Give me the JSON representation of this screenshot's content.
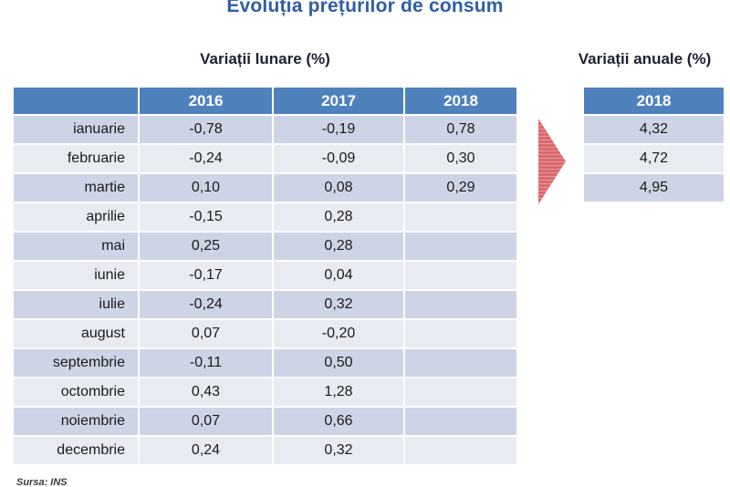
{
  "title": "Evoluția prețurilor de consum",
  "monthly_table": {
    "heading": "Variații lunare (%)",
    "columns": [
      "",
      "2016",
      "2017",
      "2018"
    ],
    "rows": [
      {
        "month": "ianuarie",
        "y2016": "-0,78",
        "y2017": "-0,19",
        "y2018": "0,78"
      },
      {
        "month": "februarie",
        "y2016": "-0,24",
        "y2017": "-0,09",
        "y2018": "0,30"
      },
      {
        "month": "martie",
        "y2016": "0,10",
        "y2017": "0,08",
        "y2018": "0,29"
      },
      {
        "month": "aprilie",
        "y2016": "-0,15",
        "y2017": "0,28",
        "y2018": ""
      },
      {
        "month": "mai",
        "y2016": "0,25",
        "y2017": "0,28",
        "y2018": ""
      },
      {
        "month": "iunie",
        "y2016": "-0,17",
        "y2017": "0,04",
        "y2018": ""
      },
      {
        "month": "iulie",
        "y2016": "-0,24",
        "y2017": "0,32",
        "y2018": ""
      },
      {
        "month": "august",
        "y2016": "0,07",
        "y2017": "-0,20",
        "y2018": ""
      },
      {
        "month": "septembrie",
        "y2016": "-0,11",
        "y2017": "0,50",
        "y2018": ""
      },
      {
        "month": "octombrie",
        "y2016": "0,43",
        "y2017": "1,28",
        "y2018": ""
      },
      {
        "month": "noiembrie",
        "y2016": "0,07",
        "y2017": "0,66",
        "y2018": ""
      },
      {
        "month": "decembrie",
        "y2016": "0,24",
        "y2017": "0,32",
        "y2018": ""
      }
    ]
  },
  "annual_table": {
    "heading": "Variații anuale (%)",
    "column": "2018",
    "values": [
      "4,32",
      "4,72",
      "4,95"
    ]
  },
  "arrow_icon": "right-arrow",
  "source": "Sursa: INS",
  "colors": {
    "title_blue": "#2d5ea9",
    "header_blue": "#4f81bd",
    "row_dark": "#cdd4e6",
    "row_light": "#e9ebf3",
    "arrow_red": "#d9696e",
    "arrow_stripe": "#e79a9d",
    "heading_dark": "#1c2030"
  }
}
